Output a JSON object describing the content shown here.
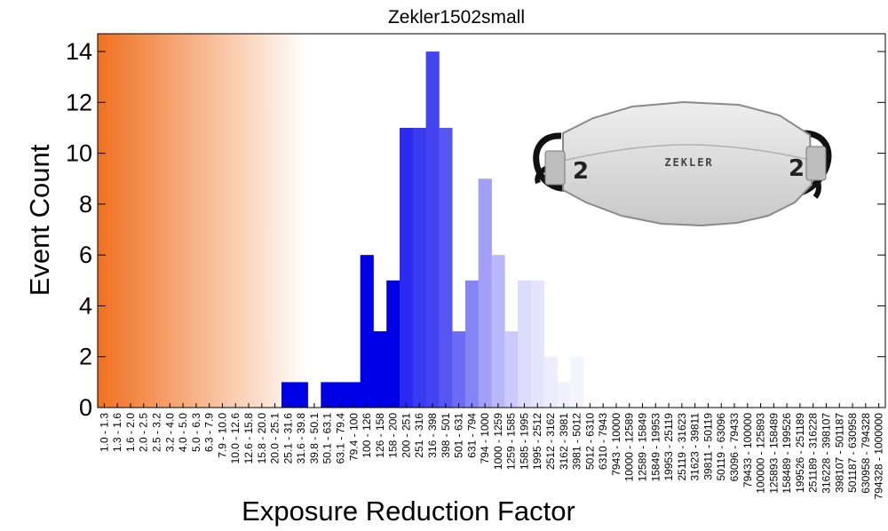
{
  "chart_data": {
    "type": "bar",
    "title": "Zekler1502small",
    "xlabel": "Exposure Reduction Factor",
    "ylabel": "Event Count",
    "ylim": [
      0,
      14.7
    ],
    "yticks": [
      0,
      2,
      4,
      6,
      8,
      10,
      12,
      14
    ],
    "categories": [
      "1.0 - 1.3",
      "1.3 - 1.6",
      "1.6 - 2.0",
      "2.0 - 2.5",
      "2.5 - 3.2",
      "3.2 - 4.0",
      "4.0 - 5.0",
      "5.0 - 6.3",
      "6.3 - 7.9",
      "7.9 - 10.0",
      "10.0 - 12.6",
      "12.6 - 15.8",
      "15.8 - 20.0",
      "20.0 - 25.1",
      "25.1 - 31.6",
      "31.6 - 39.8",
      "39.8 - 50.1",
      "50.1 - 63.1",
      "63.1 - 79.4",
      "79.4 - 100",
      "100 - 126",
      "126 - 158",
      "158 - 200",
      "200 - 251",
      "251 - 316",
      "316 - 398",
      "398 - 501",
      "501 - 631",
      "631 - 794",
      "794 - 1000",
      "1000 - 1259",
      "1259 - 1585",
      "1585 - 1995",
      "1995 - 2512",
      "2512 - 3162",
      "3162 - 3981",
      "3981 - 5012",
      "5012 - 6310",
      "6310 - 7943",
      "7943 - 10000",
      "10000 - 12589",
      "12589 - 15849",
      "15849 - 19953",
      "19953 - 25119",
      "25119 - 31623",
      "31623 - 39811",
      "39811 - 50119",
      "50119 - 63096",
      "63096 - 79433",
      "79433 - 100000",
      "100000 - 125893",
      "125893 - 158489",
      "158489 - 199526",
      "199526 - 251189",
      "251189 - 316228",
      "316228 - 398107",
      "398107 - 501187",
      "501187 - 630958",
      "630958 - 794328",
      "794328 - 1000000"
    ],
    "values": [
      0,
      0,
      0,
      0,
      0,
      0,
      0,
      0,
      0,
      0,
      0,
      0,
      0,
      0,
      1,
      1,
      0,
      1,
      1,
      1,
      6,
      3,
      5,
      11,
      11,
      14,
      11,
      3,
      5,
      9,
      6,
      3,
      5,
      5,
      2,
      1,
      2,
      0,
      0,
      0,
      0,
      0,
      0,
      0,
      0,
      0,
      0,
      0,
      0,
      0,
      0,
      0,
      0,
      0,
      0,
      0,
      0,
      0,
      0,
      0
    ],
    "bar_colors": [
      "#f07a2a",
      "#f07a2a",
      "#f07a2a",
      "#f07a2a",
      "#f07a2a",
      "#f07a2a",
      "#f07a2a",
      "#f07a2a",
      "#f07a2a",
      "#f07a2a",
      "#f07a2a",
      "#f07a2a",
      "#f07a2a",
      "#f07a2a",
      "#0000e6",
      "#0000e6",
      "#0000e6",
      "#0000e6",
      "#0000e6",
      "#0000e6",
      "#0000e6",
      "#0000e6",
      "#0000e6",
      "#2a2af0",
      "#3a3af0",
      "#4444f0",
      "#5555f2",
      "#6b6bf4",
      "#8585f6",
      "#a0a0f8",
      "#b8b8fa",
      "#cbcbfb",
      "#dcdcfc",
      "#e4e4fd",
      "#ececfd",
      "#f0f0fe",
      "#f4f4fe",
      "#ffffff",
      "#ffffff",
      "#ffffff",
      "#ffffff",
      "#ffffff",
      "#ffffff",
      "#ffffff",
      "#ffffff",
      "#ffffff",
      "#ffffff",
      "#ffffff",
      "#ffffff",
      "#ffffff",
      "#ffffff",
      "#ffffff",
      "#ffffff",
      "#ffffff",
      "#ffffff",
      "#ffffff",
      "#ffffff",
      "#ffffff",
      "#ffffff",
      "#ffffff"
    ],
    "background_gradient": {
      "from": "#f07020",
      "to": "#ffffff"
    },
    "grid": false,
    "legend": "none"
  },
  "mask_image": {
    "brand": "ZEKLER",
    "left_number": "2",
    "right_number": "2",
    "strap_color": "#111111",
    "body_color": "#d9d9d9"
  }
}
